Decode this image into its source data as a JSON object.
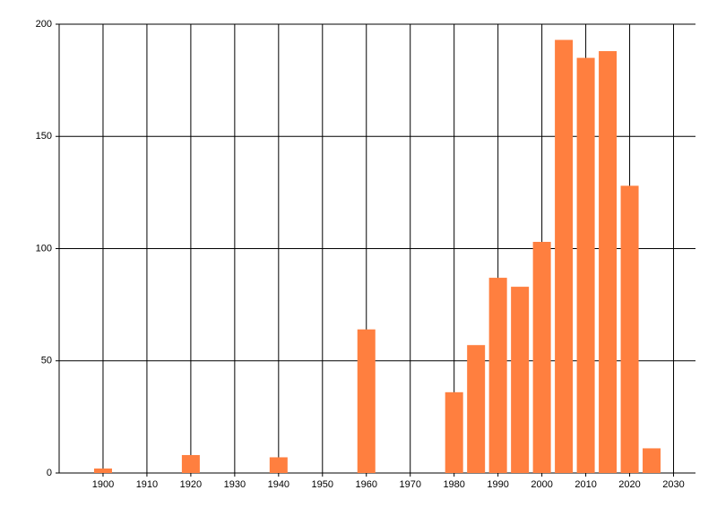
{
  "chart_data": {
    "type": "bar",
    "x": [
      1900,
      1920,
      1940,
      1960,
      1980,
      1985,
      1990,
      1995,
      2000,
      2005,
      2010,
      2015,
      2020,
      2025
    ],
    "values": [
      2,
      8,
      7,
      64,
      36,
      57,
      87,
      83,
      103,
      193,
      185,
      188,
      128,
      11
    ],
    "color": "#ff7f3f",
    "xlim": [
      1890,
      2035
    ],
    "xticks": [
      1900,
      1910,
      1920,
      1930,
      1940,
      1950,
      1960,
      1970,
      1980,
      1990,
      2000,
      2010,
      2020,
      2030
    ],
    "ylim": [
      0,
      200
    ],
    "yticks": [
      0,
      50,
      100,
      150,
      200
    ],
    "grid": true
  }
}
